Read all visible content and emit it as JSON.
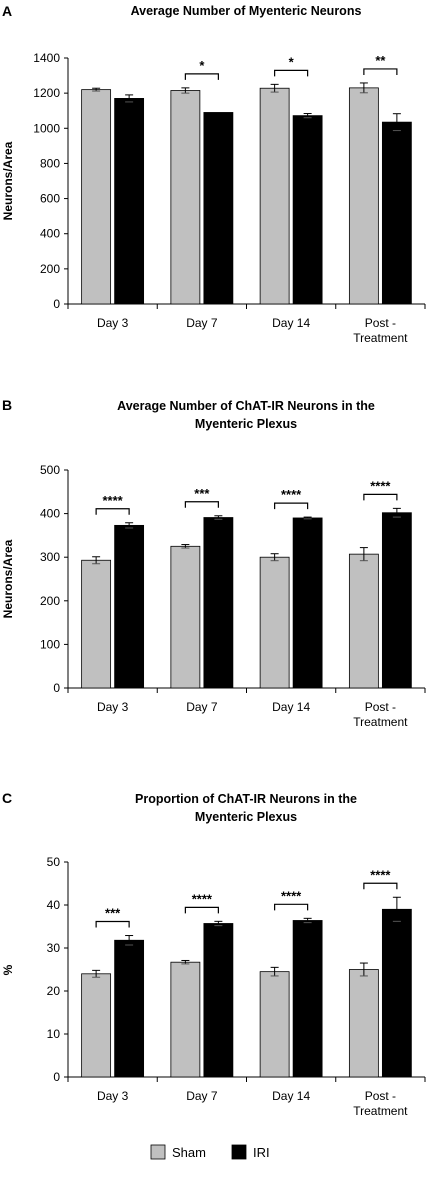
{
  "colors": {
    "sham": "#c0c0c0",
    "iri": "#000000",
    "axis": "#000000"
  },
  "legend": {
    "items": [
      {
        "label": "Sham",
        "color": "#c0c0c0"
      },
      {
        "label": "IRI",
        "color": "#000000"
      }
    ]
  },
  "chart_data": [
    {
      "type": "bar",
      "panel": "A",
      "title": [
        "Average Number of Myenteric Neurons"
      ],
      "ylabel": "Neurons/Area",
      "ylim": [
        0,
        1400
      ],
      "yticks": [
        0,
        200,
        400,
        600,
        800,
        1000,
        1200,
        1400
      ],
      "categories": [
        [
          "Day 3"
        ],
        [
          "Day 7"
        ],
        [
          "Day 14"
        ],
        [
          "Post -",
          "Treatment"
        ]
      ],
      "series": [
        {
          "name": "Sham",
          "values": [
            1220,
            1215,
            1228,
            1230
          ],
          "errors": [
            8,
            15,
            22,
            28
          ]
        },
        {
          "name": "IRI",
          "values": [
            1170,
            1090,
            1072,
            1035
          ],
          "errors": [
            20,
            0,
            12,
            48
          ]
        }
      ],
      "significance": [
        "",
        "*",
        "*",
        "**"
      ]
    },
    {
      "type": "bar",
      "panel": "B",
      "title": [
        "Average Number of ChAT-IR Neurons in the",
        "Myenteric Plexus"
      ],
      "ylabel": "Neurons/Area",
      "ylim": [
        0,
        500
      ],
      "yticks": [
        0,
        100,
        200,
        300,
        400,
        500
      ],
      "categories": [
        [
          "Day 3"
        ],
        [
          "Day 7"
        ],
        [
          "Day 14"
        ],
        [
          "Post -",
          "Treatment"
        ]
      ],
      "series": [
        {
          "name": "Sham",
          "values": [
            293,
            325,
            300,
            307
          ],
          "errors": [
            8,
            4,
            8,
            15
          ]
        },
        {
          "name": "IRI",
          "values": [
            373,
            391,
            390,
            402
          ],
          "errors": [
            6,
            4,
            2,
            10
          ]
        }
      ],
      "significance": [
        "****",
        "***",
        "****",
        "****"
      ]
    },
    {
      "type": "bar",
      "panel": "C",
      "title": [
        "Proportion of ChAT-IR Neurons in the",
        "Myenteric Plexus"
      ],
      "ylabel": "%",
      "ylim": [
        0,
        50
      ],
      "yticks": [
        0,
        10,
        20,
        30,
        40,
        50
      ],
      "categories": [
        [
          "Day 3"
        ],
        [
          "Day 7"
        ],
        [
          "Day 14"
        ],
        [
          "Post -",
          "Treatment"
        ]
      ],
      "series": [
        {
          "name": "Sham",
          "values": [
            24.0,
            26.7,
            24.5,
            25.0
          ],
          "errors": [
            0.8,
            0.4,
            1.0,
            1.5
          ]
        },
        {
          "name": "IRI",
          "values": [
            31.8,
            35.7,
            36.4,
            39.0
          ],
          "errors": [
            1.1,
            0.5,
            0.5,
            2.8
          ]
        }
      ],
      "significance": [
        "***",
        "****",
        "****",
        "****"
      ]
    }
  ]
}
